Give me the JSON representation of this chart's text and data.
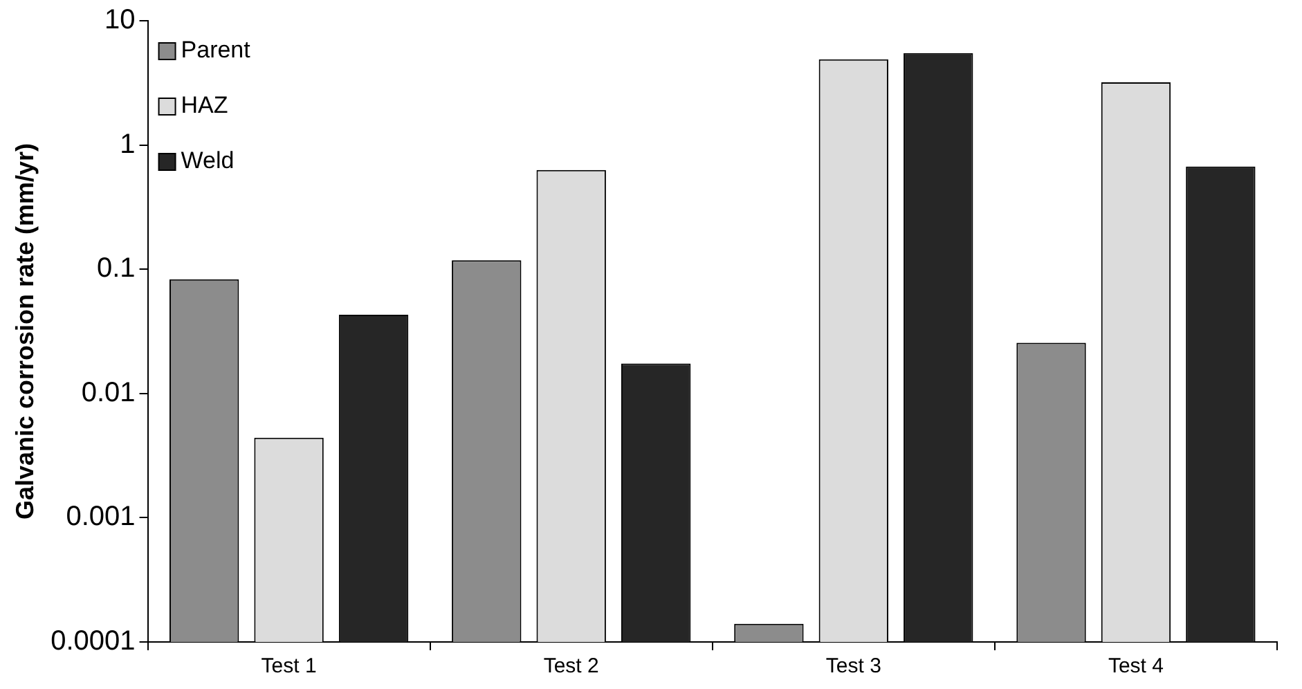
{
  "chart_data": {
    "type": "bar",
    "ylabel": "Galvanic corrosion rate (mm/yr)",
    "categories": [
      "Test 1",
      "Test 2",
      "Test 3",
      "Test 4"
    ],
    "series": [
      {
        "name": "Parent",
        "color": "#8c8c8c",
        "values": [
          0.083,
          0.118,
          0.00014,
          0.0256
        ]
      },
      {
        "name": "HAZ",
        "color": "#dcdcdc",
        "values": [
          0.0044,
          0.63,
          4.9,
          3.2
        ]
      },
      {
        "name": "Weld",
        "color": "#262626",
        "values": [
          0.043,
          0.0174,
          5.5,
          0.67
        ]
      }
    ],
    "log": "y",
    "ylim": [
      0.0001,
      10
    ],
    "yticks": [
      0.0001,
      0.001,
      0.01,
      0.1,
      1,
      10
    ],
    "grid": false,
    "legend": "top left"
  }
}
